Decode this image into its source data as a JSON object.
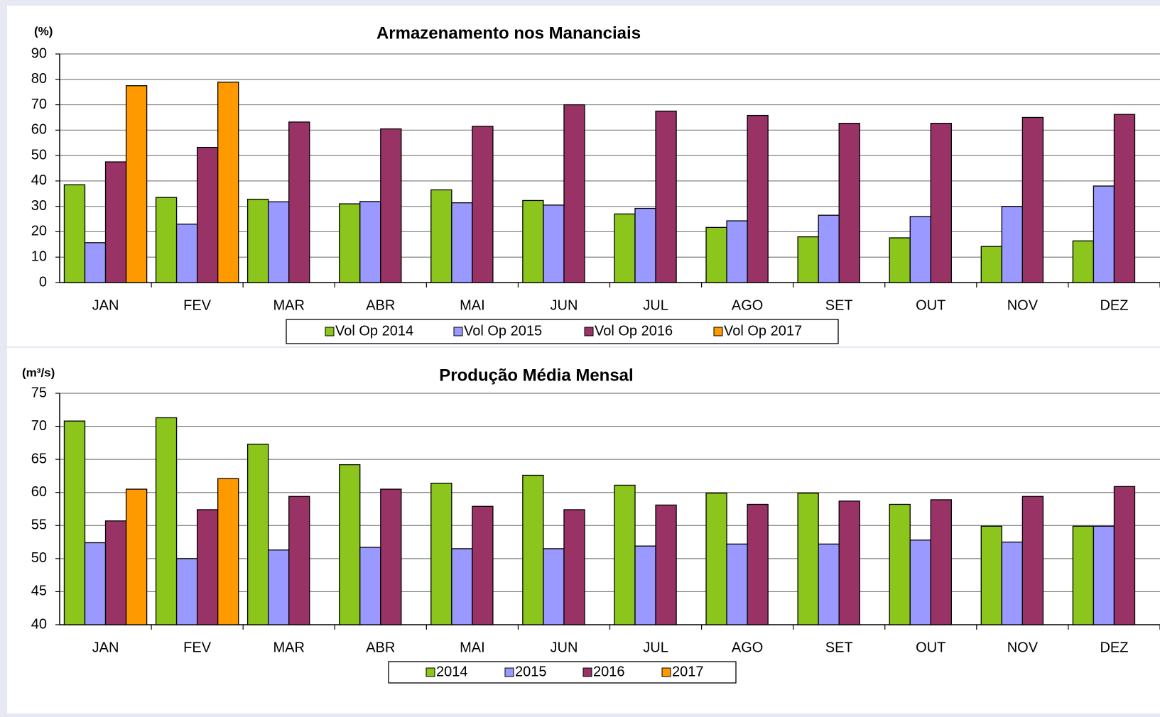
{
  "colors": {
    "background": "#e6e8f4",
    "panel": "#ffffff",
    "gridline": "#808080",
    "series_2014": "#8cc61c",
    "series_2015": "#9999ff",
    "series_2016": "#993366",
    "series_2017": "#ff9900"
  },
  "chart_data": [
    {
      "type": "bar",
      "title": "Armazenamento nos Mananciais",
      "unit_label": "(%)",
      "categories": [
        "JAN",
        "FEV",
        "MAR",
        "ABR",
        "MAI",
        "JUN",
        "JUL",
        "AGO",
        "SET",
        "OUT",
        "NOV",
        "DEZ"
      ],
      "ylim": [
        0,
        90
      ],
      "yticks": [
        0,
        10,
        20,
        30,
        40,
        50,
        60,
        70,
        80,
        90
      ],
      "grid": true,
      "legend_position": "bottom",
      "series": [
        {
          "name": "Vol Op 2014",
          "color": "#8cc61c",
          "values": [
            38.5,
            33.5,
            32.8,
            31,
            36.5,
            32.3,
            27,
            21.7,
            18,
            17.6,
            14.2,
            16.4
          ]
        },
        {
          "name": "Vol Op 2015",
          "color": "#9999ff",
          "values": [
            15.7,
            23,
            31.8,
            31.9,
            31.4,
            30.5,
            29.2,
            24.3,
            26.5,
            26,
            30,
            38
          ]
        },
        {
          "name": "Vol Op 2016",
          "color": "#993366",
          "values": [
            47.5,
            53.2,
            63.2,
            60.5,
            61.5,
            70,
            67.5,
            65.8,
            62.7,
            62.7,
            65,
            66.2
          ]
        },
        {
          "name": "Vol Op 2017",
          "color": "#ff9900",
          "values": [
            77.5,
            78.9,
            null,
            null,
            null,
            null,
            null,
            null,
            null,
            null,
            null,
            null
          ]
        }
      ]
    },
    {
      "type": "bar",
      "title": "Produção Média Mensal",
      "unit_label": "(m³/s)",
      "categories": [
        "JAN",
        "FEV",
        "MAR",
        "ABR",
        "MAI",
        "JUN",
        "JUL",
        "AGO",
        "SET",
        "OUT",
        "NOV",
        "DEZ"
      ],
      "ylim": [
        40,
        75
      ],
      "yticks": [
        40,
        45,
        50,
        55,
        60,
        65,
        70,
        75
      ],
      "grid": true,
      "legend_position": "bottom",
      "series": [
        {
          "name": "2014",
          "color": "#8cc61c",
          "values": [
            70.8,
            71.3,
            67.3,
            64.2,
            61.4,
            62.6,
            61.1,
            59.9,
            59.9,
            58.2,
            54.9,
            54.9
          ]
        },
        {
          "name": "2015",
          "color": "#9999ff",
          "values": [
            52.4,
            50.0,
            51.3,
            51.7,
            51.5,
            51.5,
            51.9,
            52.2,
            52.2,
            52.8,
            52.5,
            54.9
          ]
        },
        {
          "name": "2016",
          "color": "#993366",
          "values": [
            55.7,
            57.4,
            59.4,
            60.5,
            57.9,
            57.4,
            58.1,
            58.2,
            58.7,
            58.9,
            59.4,
            60.9
          ]
        },
        {
          "name": "2017",
          "color": "#ff9900",
          "values": [
            60.5,
            62.1,
            null,
            null,
            null,
            null,
            null,
            null,
            null,
            null,
            null,
            null
          ]
        }
      ]
    }
  ]
}
